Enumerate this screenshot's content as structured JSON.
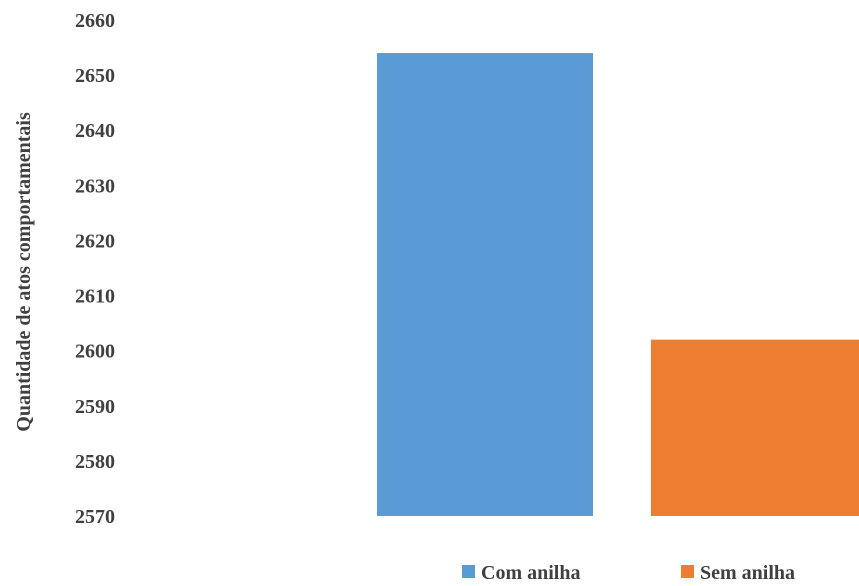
{
  "chart_data": {
    "type": "bar",
    "title": "",
    "xlabel": "",
    "ylabel": "Quantidade de atos comportamentais",
    "ylim": [
      2570,
      2660
    ],
    "yticks": [
      2570,
      2580,
      2590,
      2600,
      2610,
      2620,
      2630,
      2640,
      2650,
      2660
    ],
    "grid": false,
    "legend_position": "bottom",
    "series": [
      {
        "name": "Com anilha",
        "value": 2654,
        "color": "#5B9BD5"
      },
      {
        "name": "Sem anilha",
        "value": 2602,
        "color": "#ED7D31"
      }
    ]
  }
}
